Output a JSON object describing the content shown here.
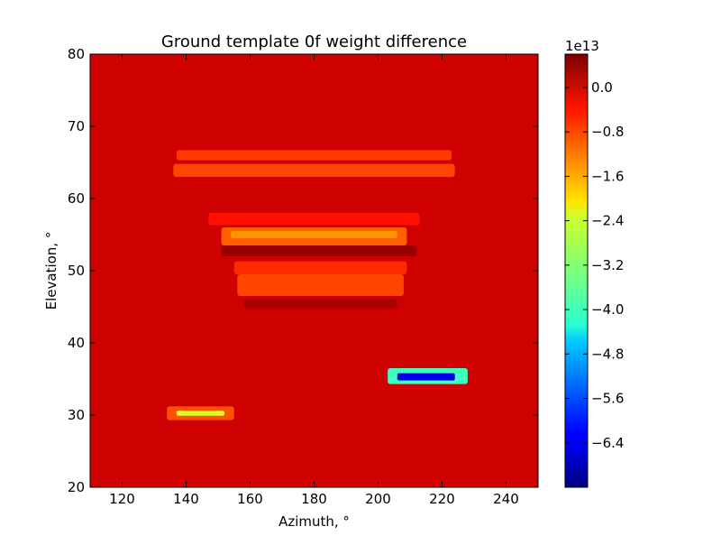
{
  "chart_data": {
    "type": "heatmap",
    "title": "Ground template 0f weight difference",
    "xlabel": "Azimuth, °",
    "ylabel": "Elevation, °",
    "xlim": [
      110,
      250
    ],
    "ylim": [
      20,
      80
    ],
    "x_ticks": [
      120,
      140,
      160,
      180,
      200,
      220,
      240
    ],
    "y_ticks": [
      20,
      30,
      40,
      50,
      60,
      70,
      80
    ],
    "grid": false,
    "colormap": "jet",
    "background_value": 0.0,
    "colorbar": {
      "multiplier_label": "1e13",
      "range": [
        -7.2,
        0.6
      ],
      "ticks": [
        "0.0",
        "−0.8",
        "−1.6",
        "−2.4",
        "−3.2",
        "−4.0",
        "−4.8",
        "−5.6",
        "−6.4"
      ],
      "tick_values": [
        0.0,
        -0.8,
        -1.6,
        -2.4,
        -3.2,
        -4.0,
        -4.8,
        -5.6,
        -6.4
      ]
    },
    "regions": [
      {
        "az": [
          134,
          155
        ],
        "el": [
          29.3,
          31.2
        ],
        "value": -1.0,
        "core": {
          "az": [
            137,
            152
          ],
          "el": [
            29.9,
            30.6
          ],
          "value": -2.6
        }
      },
      {
        "az": [
          203,
          228
        ],
        "el": [
          34.3,
          36.5
        ],
        "value": -3.8,
        "core": {
          "az": [
            206,
            224
          ],
          "el": [
            34.8,
            35.8
          ],
          "value": -6.4
        }
      },
      {
        "az": [
          137,
          223
        ],
        "el": [
          65.3,
          66.7
        ],
        "value": -0.8
      },
      {
        "az": [
          136,
          224
        ],
        "el": [
          63.0,
          64.8
        ],
        "value": -0.9
      },
      {
        "az": [
          147,
          213
        ],
        "el": [
          56.3,
          58.0
        ],
        "value": -0.5
      },
      {
        "az": [
          151,
          209
        ],
        "el": [
          53.5,
          56.0
        ],
        "value": -1.1,
        "core": {
          "az": [
            154,
            206
          ],
          "el": [
            54.5,
            55.5
          ],
          "value": -1.5
        }
      },
      {
        "az": [
          151,
          212
        ],
        "el": [
          52.0,
          53.5
        ],
        "value": 0.4
      },
      {
        "az": [
          155,
          209
        ],
        "el": [
          49.5,
          51.3
        ],
        "value": -0.7
      },
      {
        "az": [
          156,
          208
        ],
        "el": [
          46.5,
          49.5
        ],
        "value": -0.9
      },
      {
        "az": [
          158,
          206
        ],
        "el": [
          44.8,
          46.0
        ],
        "value": 0.3
      }
    ]
  }
}
